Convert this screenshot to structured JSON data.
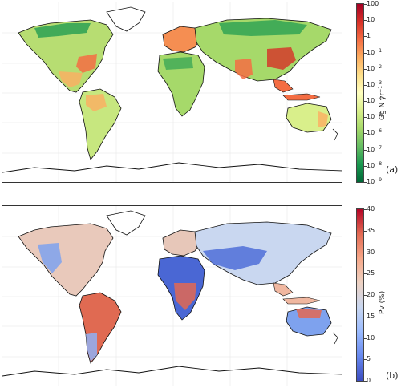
{
  "panel_a": {
    "letter": "(a)",
    "colorbar_label_base": "Gg N yr",
    "colorbar_label_exp": "−1",
    "ticks": [
      {
        "base": "100",
        "exp": ""
      },
      {
        "base": "10",
        "exp": ""
      },
      {
        "base": "1",
        "exp": ""
      },
      {
        "base": "10",
        "exp": "−1"
      },
      {
        "base": "10",
        "exp": "−2"
      },
      {
        "base": "10",
        "exp": "−3"
      },
      {
        "base": "10",
        "exp": "−4"
      },
      {
        "base": "10",
        "exp": "−5"
      },
      {
        "base": "10",
        "exp": "−6"
      },
      {
        "base": "10",
        "exp": "−7"
      },
      {
        "base": "10",
        "exp": "−8"
      },
      {
        "base": "10",
        "exp": "−9"
      }
    ],
    "colors": [
      "#006837",
      "#1a9850",
      "#66bd63",
      "#a6d96a",
      "#d9ef8b",
      "#ffffbf",
      "#fee08b",
      "#fdae61",
      "#f46d43",
      "#d73027",
      "#a50026"
    ]
  },
  "panel_b": {
    "letter": "(b)",
    "colorbar_label": "Pv (%)",
    "ticks": [
      "40",
      "35",
      "30",
      "25",
      "20",
      "15",
      "10",
      "5",
      "0"
    ],
    "colors": [
      "#3b4cc0",
      "#6788ee",
      "#9abbff",
      "#c9d7f0",
      "#edd1c2",
      "#f7a889",
      "#e26952",
      "#b40426"
    ]
  }
}
